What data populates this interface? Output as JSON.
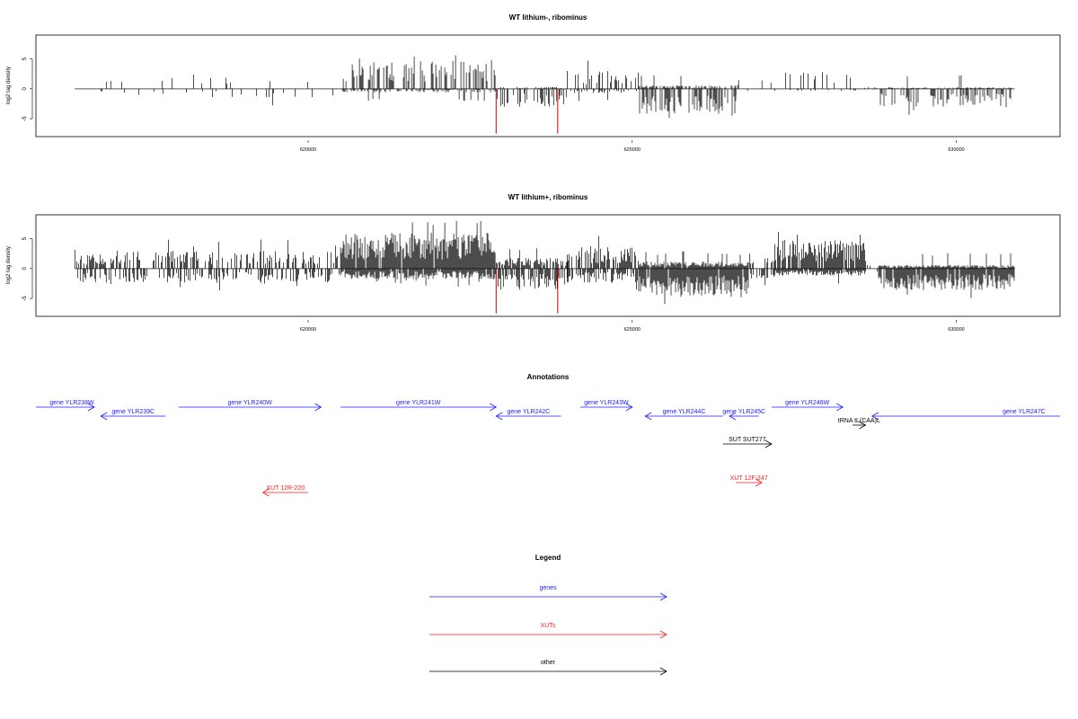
{
  "colors": {
    "gene": "#1c1cff",
    "xut": "#ff1c1c",
    "other": "#000000",
    "signal": "#000000",
    "highlight": "#cc0000",
    "axis": "#000000"
  },
  "chart_data": [
    {
      "type": "bar",
      "title": "WT lithium-, ribominus",
      "ylabel": "log2 tag density",
      "xlim": [
        615800,
        631600
      ],
      "ylim": [
        -8,
        9
      ],
      "x_ticks": [
        620000,
        625000,
        630000
      ],
      "x_tick_labels": [
        "620000",
        "625000",
        "630000"
      ],
      "y_ticks": [
        -5,
        0,
        5
      ],
      "y_tick_labels": [
        "-5",
        "0",
        "5"
      ],
      "highlight_lines": [
        622900,
        623850
      ],
      "highlight_values": [
        -7.5,
        -7.5
      ],
      "signal_profile": [
        {
          "start": 616400,
          "end": 617000,
          "plus": 1.5,
          "minus": 0.8,
          "density": 0.06
        },
        {
          "start": 617000,
          "end": 620500,
          "plus": 2.0,
          "minus": 1.2,
          "density": 0.06
        },
        {
          "start": 620500,
          "end": 622900,
          "plus": 4.0,
          "minus": 0.5,
          "density": 0.45
        },
        {
          "start": 622900,
          "end": 624000,
          "plus": 0.3,
          "minus": 2.5,
          "density": 0.35
        },
        {
          "start": 624000,
          "end": 625100,
          "plus": 2.5,
          "minus": 0.6,
          "density": 0.3
        },
        {
          "start": 625100,
          "end": 626600,
          "plus": 0.5,
          "minus": 3.5,
          "density": 0.55
        },
        {
          "start": 626600,
          "end": 627200,
          "plus": 1.5,
          "minus": 1.0,
          "density": 0.1
        },
        {
          "start": 627200,
          "end": 628500,
          "plus": 2.5,
          "minus": 0.3,
          "density": 0.12
        },
        {
          "start": 628500,
          "end": 628800,
          "plus": 0.3,
          "minus": 0.2,
          "density": 0.05
        },
        {
          "start": 628800,
          "end": 630900,
          "plus": 0.2,
          "minus": 2.5,
          "density": 0.45
        }
      ]
    },
    {
      "type": "bar",
      "title": "WT lithium+, ribominus",
      "ylabel": "log2 tag density",
      "xlim": [
        615800,
        631600
      ],
      "ylim": [
        -8,
        9
      ],
      "x_ticks": [
        620000,
        625000,
        630000
      ],
      "x_tick_labels": [
        "620000",
        "625000",
        "630000"
      ],
      "y_ticks": [
        -5,
        0,
        5
      ],
      "y_tick_labels": [
        "-5",
        "0",
        "5"
      ],
      "highlight_lines": [
        622900,
        623850
      ],
      "highlight_values": [
        -7.5,
        -7.5
      ],
      "signal_profile": [
        {
          "start": 616400,
          "end": 617000,
          "plus": 2.0,
          "minus": 2.0,
          "density": 0.6
        },
        {
          "start": 617000,
          "end": 620500,
          "plus": 2.5,
          "minus": 2.0,
          "density": 0.4
        },
        {
          "start": 620500,
          "end": 622900,
          "plus": 5.0,
          "minus": 1.5,
          "density": 0.95
        },
        {
          "start": 622900,
          "end": 624000,
          "plus": 1.5,
          "minus": 3.0,
          "density": 0.7
        },
        {
          "start": 624000,
          "end": 625100,
          "plus": 3.0,
          "minus": 2.0,
          "density": 0.7
        },
        {
          "start": 625100,
          "end": 626800,
          "plus": 1.0,
          "minus": 4.0,
          "density": 0.95
        },
        {
          "start": 626800,
          "end": 627200,
          "plus": 1.5,
          "minus": 1.5,
          "density": 0.4
        },
        {
          "start": 627200,
          "end": 628600,
          "plus": 4.0,
          "minus": 1.0,
          "density": 0.9
        },
        {
          "start": 628600,
          "end": 628800,
          "plus": 0.5,
          "minus": 0.5,
          "density": 0.2
        },
        {
          "start": 628800,
          "end": 630900,
          "plus": 0.5,
          "minus": 3.0,
          "density": 0.95
        }
      ]
    },
    {
      "type": "table",
      "title": "Annotations",
      "xlim": [
        615800,
        631600
      ],
      "features": [
        {
          "label": "gene YLR238W",
          "kind": "gene",
          "start": 615800,
          "end": 616700,
          "strand": "+",
          "row": 0
        },
        {
          "label": "gene YLR239C",
          "kind": "gene",
          "start": 616800,
          "end": 617800,
          "strand": "-",
          "row": 1
        },
        {
          "label": "gene YLR240W",
          "kind": "gene",
          "start": 618000,
          "end": 620200,
          "strand": "+",
          "row": 0
        },
        {
          "label": "gene YLR241W",
          "kind": "gene",
          "start": 620500,
          "end": 622900,
          "strand": "+",
          "row": 0
        },
        {
          "label": "gene YLR242C",
          "kind": "gene",
          "start": 622900,
          "end": 623900,
          "strand": "-",
          "row": 1
        },
        {
          "label": "gene YLR243W",
          "kind": "gene",
          "start": 624200,
          "end": 625000,
          "strand": "+",
          "row": 0
        },
        {
          "label": "gene YLR244C",
          "kind": "gene",
          "start": 625200,
          "end": 626400,
          "strand": "-",
          "row": 1
        },
        {
          "label": "gene YLR245C",
          "kind": "gene",
          "start": 626500,
          "end": 626950,
          "strand": "-",
          "row": 1
        },
        {
          "label": "gene YLR246W",
          "kind": "gene",
          "start": 627150,
          "end": 628250,
          "strand": "+",
          "row": 0
        },
        {
          "label": "gene YLR247C",
          "kind": "gene",
          "start": 628700,
          "end": 631600,
          "strand": "-",
          "row": 1
        },
        {
          "label": "tRNA tL(CAA)L",
          "kind": "other",
          "start": 628400,
          "end": 628600,
          "strand": "+",
          "row": 2
        },
        {
          "label": "SUT SUT277",
          "kind": "other",
          "start": 626400,
          "end": 627150,
          "strand": "+",
          "row": 3
        },
        {
          "label": "XUT 12R-220",
          "kind": "xut",
          "start": 619300,
          "end": 620000,
          "strand": "-",
          "row": 5
        },
        {
          "label": "XUT 12F-247",
          "kind": "xut",
          "start": 626600,
          "end": 627000,
          "strand": "+",
          "row": 4
        }
      ]
    }
  ],
  "legend": {
    "title": "Legend",
    "items": [
      {
        "label": "genes",
        "kind": "gene"
      },
      {
        "label": "XUTs",
        "kind": "xut"
      },
      {
        "label": "other",
        "kind": "other"
      }
    ]
  }
}
